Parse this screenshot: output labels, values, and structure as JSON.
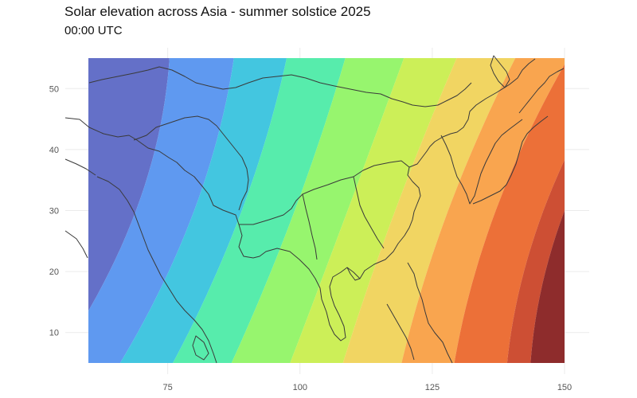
{
  "title": "Solar elevation across Asia - summer solstice 2025",
  "subtitle": "00:00 UTC",
  "chart_data": {
    "type": "heatmap",
    "x_ticks": [
      75,
      100,
      125,
      150
    ],
    "y_ticks": [
      10,
      20,
      30,
      40,
      50
    ],
    "xlim": [
      60,
      150
    ],
    "ylim": [
      5,
      55
    ],
    "grid": true,
    "legend": "none",
    "colors": [
      "#6470c8",
      "#5f99f0",
      "#43c6e0",
      "#57ecac",
      "#97f56e",
      "#ccef58",
      "#f1d562",
      "#f9a54f",
      "#ec7038",
      "#cd4f34",
      "#8e2c2c"
    ],
    "bands_lon_at_lat30": [
      69,
      80,
      89,
      99,
      109,
      118,
      128,
      137,
      146,
      150
    ]
  }
}
